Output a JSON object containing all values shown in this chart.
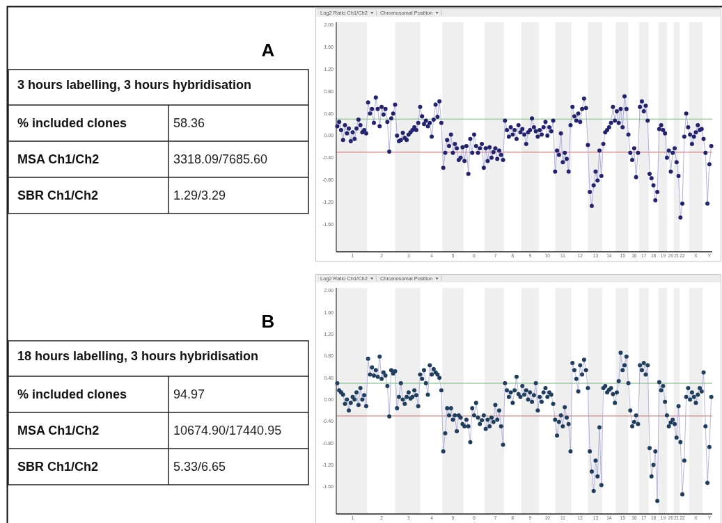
{
  "chart_data": [
    {
      "type": "other",
      "title": "A",
      "subtitle": "3 hours labelling, 3 hours hybridisation",
      "annotations": [
        "% included clones",
        "58.36",
        "MSA Ch1/Ch2",
        "3318.09/7685.60",
        "SBR Ch1/Ch2",
        "1.29/3.29"
      ]
    },
    {
      "type": "line",
      "ylabel": "Log2 Ratio Ch1/Ch2",
      "xlabel": "Chromosomal Position",
      "ylim": [
        -2.1,
        2.05
      ],
      "yticks": [
        {
          "value": 2,
          "label": "2.00"
        },
        {
          "value": 1.6,
          "label": "1.60"
        },
        {
          "value": 1.2,
          "label": "1.20"
        },
        {
          "value": 0.8,
          "label": "0.80"
        },
        {
          "value": 0.4,
          "label": "0.40"
        },
        {
          "value": 0,
          "label": "0.00"
        },
        {
          "value": -0.4,
          "label": "-0.40"
        },
        {
          "value": -0.8,
          "label": "-0.80"
        },
        {
          "value": -1.2,
          "label": "-1.20"
        },
        {
          "value": -1.6,
          "label": "-1.60"
        }
      ],
      "ref_lines": [
        {
          "axis": "y",
          "value": 0.3,
          "color": "#7dbb7d"
        },
        {
          "axis": "y",
          "value": -0.3,
          "color": "#d46a6a"
        }
      ],
      "categories": [
        null,
        null,
        null,
        null,
        null,
        null,
        null,
        null,
        "1",
        null,
        null,
        null,
        null,
        null,
        null,
        null,
        null,
        null,
        null,
        null,
        null,
        null,
        null,
        "2",
        null,
        null,
        null,
        null,
        null,
        null,
        null,
        null,
        null,
        null,
        null,
        null,
        null,
        "3",
        null,
        null,
        null,
        null,
        null,
        null,
        null,
        null,
        null,
        null,
        null,
        "4",
        null,
        null,
        null,
        null,
        null,
        null,
        null,
        null,
        null,
        null,
        "5",
        null,
        null,
        null,
        null,
        null,
        null,
        null,
        null,
        null,
        null,
        "6",
        null,
        null,
        null,
        null,
        null,
        null,
        null,
        null,
        null,
        null,
        "7",
        null,
        null,
        null,
        null,
        null,
        null,
        null,
        null,
        "8",
        null,
        null,
        null,
        null,
        null,
        null,
        null,
        null,
        "9",
        null,
        null,
        null,
        null,
        null,
        null,
        null,
        null,
        "10",
        null,
        null,
        null,
        null,
        null,
        null,
        null,
        "11",
        null,
        null,
        null,
        null,
        null,
        null,
        null,
        null,
        "12",
        null,
        null,
        null,
        null,
        null,
        null,
        null,
        "13",
        null,
        null,
        null,
        null,
        null,
        null,
        "14",
        null,
        null,
        null,
        null,
        null,
        null,
        "15",
        null,
        null,
        null,
        null,
        null,
        "16",
        null,
        null,
        null,
        null,
        "17",
        null,
        null,
        null,
        null,
        "18",
        null,
        null,
        null,
        null,
        "19",
        null,
        null,
        null,
        "20",
        null,
        null,
        "21",
        null,
        null,
        "22",
        null,
        null,
        null,
        null,
        null,
        null,
        "X",
        null,
        null,
        null,
        null,
        null,
        null,
        "Y",
        null
      ],
      "series": [
        {
          "type": "line",
          "color": "#9d9dd8",
          "values": [
            0.17,
            0.25,
            0.1,
            -0.08,
            0.19,
            0.04,
            0.13,
            -0.1,
            0.06,
            -0.06,
            0.13,
            0.29,
            0.19,
            0.06,
            0.1,
            0.04,
            0.6,
            0.4,
            0.48,
            0.23,
            0.69,
            0.48,
            0.17,
            0.52,
            0.38,
            0.48,
            0.25,
            -0.29,
            0.31,
            0.4,
            0.56,
            0.0,
            -0.1,
            -0.08,
            0.05,
            -0.04,
            -0.08,
            0.02,
            0.06,
            0.1,
            0.15,
            0.1,
            0.23,
            0.52,
            0.35,
            0.21,
            0.27,
            0.17,
            0.23,
            -0.02,
            0.29,
            0.56,
            0.34,
            0.62,
            0.23,
            -0.58,
            -0.31,
            -0.08,
            -0.19,
            0.02,
            -0.31,
            -0.15,
            -0.23,
            -0.44,
            -0.4,
            -0.21,
            -0.46,
            -0.19,
            -0.69,
            -0.06,
            -0.31,
            0.02,
            -0.19,
            -0.31,
            -0.23,
            -0.15,
            -0.58,
            -0.23,
            -0.46,
            -0.21,
            -0.4,
            -0.3,
            -0.23,
            -0.42,
            -0.27,
            -0.35,
            -0.44,
            0.27,
            0.1,
            -0.02,
            0.15,
            0.02,
            0.1,
            -0.06,
            0.19,
            0.06,
            0.12,
            0.02,
            -0.15,
            0.06,
            0.1,
            0.31,
            0.15,
            0.08,
            -0.02,
            0.1,
            0.02,
            0.15,
            0.25,
            0.0,
            0.15,
            0.08,
            0.27,
            -0.65,
            -0.27,
            -0.35,
            0.04,
            -0.48,
            -0.31,
            -0.42,
            -0.65,
            0.19,
            0.52,
            0.35,
            0.27,
            0.4,
            0.25,
            0.48,
            0.67,
            0.5,
            -0.17,
            -1.02,
            -1.27,
            -0.9,
            -0.65,
            -0.81,
            -0.27,
            -0.73,
            -0.15,
            0.06,
            0.1,
            0.15,
            0.23,
            0.52,
            0.27,
            0.44,
            0.23,
            0.48,
            0.15,
            0.71,
            0.48,
            0.02,
            -0.31,
            -0.44,
            -0.23,
            -0.75,
            -0.31,
            0.52,
            0.62,
            0.44,
            0.54,
            0.27,
            -0.69,
            -0.77,
            -0.9,
            -1.17,
            -1.02,
            0.12,
            0.19,
            0.1,
            0.04,
            -0.4,
            -0.27,
            -0.65,
            -0.31,
            -0.23,
            -0.48,
            -0.73,
            -1.48,
            -1.23,
            -0.02,
            0.4,
            0.15,
            0.02,
            -0.15,
            -0.02,
            0.06,
            0.19,
            0.1,
            0.12,
            -0.06,
            -0.31,
            -1.23,
            -0.52,
            -0.19
          ]
        },
        {
          "type": "scatter",
          "marker": "circle",
          "color": "#22226e",
          "values": [
            0.17,
            0.25,
            0.1,
            -0.08,
            0.19,
            0.04,
            0.13,
            -0.1,
            0.06,
            -0.06,
            0.13,
            0.29,
            0.19,
            0.06,
            0.1,
            0.04,
            0.6,
            0.4,
            0.48,
            0.23,
            0.69,
            0.48,
            0.17,
            0.52,
            0.38,
            0.48,
            0.25,
            -0.29,
            0.31,
            0.4,
            0.56,
            0.0,
            -0.1,
            -0.08,
            0.05,
            -0.04,
            -0.08,
            0.02,
            0.06,
            0.1,
            0.15,
            0.1,
            0.23,
            0.52,
            0.35,
            0.21,
            0.27,
            0.17,
            0.23,
            -0.02,
            0.29,
            0.56,
            0.34,
            0.62,
            0.23,
            -0.58,
            -0.31,
            -0.08,
            -0.19,
            0.02,
            -0.31,
            -0.15,
            -0.23,
            -0.44,
            -0.4,
            -0.21,
            -0.46,
            -0.19,
            -0.69,
            -0.06,
            -0.31,
            0.02,
            -0.19,
            -0.31,
            -0.23,
            -0.15,
            -0.58,
            -0.23,
            -0.46,
            -0.21,
            -0.4,
            -0.3,
            -0.23,
            -0.42,
            -0.27,
            -0.35,
            -0.44,
            0.27,
            0.1,
            -0.02,
            0.15,
            0.02,
            0.1,
            -0.06,
            0.19,
            0.06,
            0.12,
            0.02,
            -0.15,
            0.06,
            0.1,
            0.31,
            0.15,
            0.08,
            -0.02,
            0.1,
            0.02,
            0.15,
            0.25,
            0.0,
            0.15,
            0.08,
            0.27,
            -0.65,
            -0.27,
            -0.35,
            0.04,
            -0.48,
            -0.31,
            -0.42,
            -0.65,
            0.19,
            0.52,
            0.35,
            0.27,
            0.4,
            0.25,
            0.48,
            0.67,
            0.5,
            -0.17,
            -1.02,
            -1.27,
            -0.9,
            -0.65,
            -0.81,
            -0.27,
            -0.73,
            -0.15,
            0.06,
            0.1,
            0.15,
            0.23,
            0.52,
            0.27,
            0.44,
            0.23,
            0.48,
            0.15,
            0.71,
            0.48,
            0.02,
            -0.31,
            -0.44,
            -0.23,
            -0.75,
            -0.31,
            0.52,
            0.62,
            0.44,
            0.54,
            0.27,
            -0.69,
            -0.77,
            -0.9,
            -1.17,
            -1.02,
            0.12,
            0.19,
            0.1,
            0.04,
            -0.4,
            -0.27,
            -0.65,
            -0.31,
            -0.23,
            -0.48,
            -0.73,
            -1.48,
            -1.23,
            -0.02,
            0.4,
            0.15,
            0.02,
            -0.15,
            -0.02,
            0.06,
            0.19,
            0.1,
            0.12,
            -0.06,
            -0.31,
            -1.23,
            -0.52,
            -0.19
          ]
        }
      ]
    },
    {
      "type": "other",
      "title": "B",
      "subtitle": "18 hours labelling, 3 hours hybridisation",
      "annotations": [
        "% included clones",
        "94.97",
        "MSA Ch1/Ch2",
        "10674.90/17440.95",
        "SBR Ch1/Ch2",
        "5.33/6.65"
      ]
    },
    {
      "type": "line",
      "ylabel": "Log2 Ratio Ch1/Ch2",
      "xlabel": "Chromosomal Position",
      "ylim": [
        -2.1,
        2.05
      ],
      "yticks": [
        {
          "value": 2,
          "label": "2.00"
        },
        {
          "value": 1.6,
          "label": "1.60"
        },
        {
          "value": 1.2,
          "label": "1.20"
        },
        {
          "value": 0.8,
          "label": "0.80"
        },
        {
          "value": 0.4,
          "label": "0.40"
        },
        {
          "value": 0,
          "label": "0.00"
        },
        {
          "value": -0.4,
          "label": "-0.40"
        },
        {
          "value": -0.8,
          "label": "-0.80"
        },
        {
          "value": -1.2,
          "label": "-1.20"
        },
        {
          "value": -1.6,
          "label": "-1.60"
        }
      ],
      "ref_lines": [
        {
          "axis": "y",
          "value": 0.3,
          "color": "#7dbb7d"
        },
        {
          "axis": "y",
          "value": -0.3,
          "color": "#d46a6a"
        }
      ],
      "categories": [
        null,
        null,
        null,
        null,
        null,
        null,
        null,
        null,
        "1",
        null,
        null,
        null,
        null,
        null,
        null,
        null,
        null,
        null,
        null,
        null,
        null,
        null,
        null,
        "2",
        null,
        null,
        null,
        null,
        null,
        null,
        null,
        null,
        null,
        null,
        null,
        null,
        null,
        "3",
        null,
        null,
        null,
        null,
        null,
        null,
        null,
        null,
        null,
        null,
        null,
        "4",
        null,
        null,
        null,
        null,
        null,
        null,
        null,
        null,
        null,
        null,
        "5",
        null,
        null,
        null,
        null,
        null,
        null,
        null,
        null,
        null,
        null,
        "6",
        null,
        null,
        null,
        null,
        null,
        null,
        null,
        null,
        null,
        null,
        "7",
        null,
        null,
        null,
        null,
        null,
        null,
        null,
        null,
        "8",
        null,
        null,
        null,
        null,
        null,
        null,
        null,
        null,
        "9",
        null,
        null,
        null,
        null,
        null,
        null,
        null,
        null,
        "10",
        null,
        null,
        null,
        null,
        null,
        null,
        null,
        "11",
        null,
        null,
        null,
        null,
        null,
        null,
        null,
        null,
        "12",
        null,
        null,
        null,
        null,
        null,
        null,
        null,
        "13",
        null,
        null,
        null,
        null,
        null,
        null,
        "14",
        null,
        null,
        null,
        null,
        null,
        null,
        "15",
        null,
        null,
        null,
        null,
        null,
        "16",
        null,
        null,
        null,
        null,
        "17",
        null,
        null,
        null,
        null,
        "18",
        null,
        null,
        null,
        null,
        "19",
        null,
        null,
        null,
        "20",
        null,
        null,
        "21",
        null,
        null,
        "22",
        null,
        null,
        null,
        null,
        null,
        null,
        "X",
        null,
        null,
        null,
        null,
        null,
        null,
        "Y",
        null
      ],
      "series": [
        {
          "type": "line",
          "color": "#a3a3d6",
          "values": [
            0.3,
            0.17,
            0.13,
            0.09,
            -0.08,
            0.0,
            -0.2,
            -0.06,
            0.05,
            0.0,
            0.13,
            -0.1,
            0.21,
            0.0,
            0.08,
            -0.12,
            0.75,
            0.46,
            0.59,
            0.44,
            0.54,
            0.42,
            0.79,
            0.38,
            0.5,
            0.44,
            0.25,
            -0.31,
            0.54,
            0.48,
            0.52,
            -0.16,
            0.05,
            0.3,
            0.0,
            -0.08,
            0.05,
            0.13,
            0.02,
            0.05,
            0.17,
            0.08,
            -0.12,
            0.46,
            0.38,
            0.54,
            0.3,
            0.09,
            0.63,
            0.46,
            0.56,
            0.5,
            0.46,
            0.4,
            0.17,
            -0.95,
            -0.62,
            -0.16,
            -0.29,
            -0.16,
            -0.37,
            -0.29,
            -0.58,
            -0.29,
            -0.33,
            -0.45,
            -0.49,
            -0.37,
            -0.49,
            -0.78,
            -0.16,
            -0.29,
            -0.06,
            -0.33,
            -0.45,
            -0.38,
            -0.29,
            -0.54,
            -0.37,
            -0.49,
            -0.33,
            -0.41,
            -0.1,
            -0.37,
            -0.2,
            -0.49,
            -0.83,
            0.3,
            0.17,
            0.05,
            0.13,
            -0.06,
            0.17,
            0.42,
            0.1,
            0.05,
            0.25,
            0.09,
            0.17,
            0.0,
            0.13,
            -0.04,
            0.08,
            0.3,
            -0.2,
            0.05,
            -0.04,
            0.13,
            0.21,
            0.05,
            0.13,
            0.09,
            -0.08,
            -0.37,
            -0.66,
            -0.41,
            -0.29,
            -0.49,
            -0.14,
            -0.33,
            -0.45,
            -0.95,
            0.67,
            0.54,
            0.38,
            0.15,
            0.63,
            0.46,
            0.73,
            0.54,
            0.21,
            -0.95,
            -1.32,
            -1.68,
            -1.12,
            -1.41,
            -0.51,
            -1.57,
            0.21,
            0.25,
            0.13,
            0.18,
            0.21,
            0.1,
            -0.06,
            0.13,
            0.34,
            0.86,
            0.54,
            0.63,
            0.79,
            0.3,
            -0.2,
            -0.49,
            -0.41,
            -0.29,
            -0.45,
            0.63,
            0.54,
            0.67,
            0.46,
            0.63,
            -0.89,
            -1.41,
            -1.2,
            -0.95,
            -1.86,
            0.32,
            0.17,
            0.25,
            -0.04,
            -0.29,
            -0.49,
            -0.42,
            -0.37,
            -0.45,
            -0.7,
            -0.12,
            -0.78,
            -1.74,
            -1.12,
            0.05,
            0.21,
            0.0,
            0.13,
            0.05,
            -0.06,
            0.09,
            0.21,
            0.15,
            0.5,
            -0.49,
            -1.53,
            -0.87,
            0.05
          ]
        },
        {
          "type": "scatter",
          "marker": "circle",
          "color": "#1f3d5c",
          "values": [
            0.3,
            0.17,
            0.13,
            0.09,
            -0.08,
            0.0,
            -0.2,
            -0.06,
            0.05,
            0.0,
            0.13,
            -0.1,
            0.21,
            0.0,
            0.08,
            -0.12,
            0.75,
            0.46,
            0.59,
            0.44,
            0.54,
            0.42,
            0.79,
            0.38,
            0.5,
            0.44,
            0.25,
            -0.31,
            0.54,
            0.48,
            0.52,
            -0.16,
            0.05,
            0.3,
            0.0,
            -0.08,
            0.05,
            0.13,
            0.02,
            0.05,
            0.17,
            0.08,
            -0.12,
            0.46,
            0.38,
            0.54,
            0.3,
            0.09,
            0.63,
            0.46,
            0.56,
            0.5,
            0.46,
            0.4,
            0.17,
            -0.95,
            -0.62,
            -0.16,
            -0.29,
            -0.16,
            -0.37,
            -0.29,
            -0.58,
            -0.29,
            -0.33,
            -0.45,
            -0.49,
            -0.37,
            -0.49,
            -0.78,
            -0.16,
            -0.29,
            -0.06,
            -0.33,
            -0.45,
            -0.38,
            -0.29,
            -0.54,
            -0.37,
            -0.49,
            -0.33,
            -0.41,
            -0.1,
            -0.37,
            -0.2,
            -0.49,
            -0.83,
            0.3,
            0.17,
            0.05,
            0.13,
            -0.06,
            0.17,
            0.42,
            0.1,
            0.05,
            0.25,
            0.09,
            0.17,
            0.0,
            0.13,
            -0.04,
            0.08,
            0.3,
            -0.2,
            0.05,
            -0.04,
            0.13,
            0.21,
            0.05,
            0.13,
            0.09,
            -0.08,
            -0.37,
            -0.66,
            -0.41,
            -0.29,
            -0.49,
            -0.14,
            -0.33,
            -0.45,
            -0.95,
            0.67,
            0.54,
            0.38,
            0.15,
            0.63,
            0.46,
            0.73,
            0.54,
            0.21,
            -0.95,
            -1.32,
            -1.68,
            -1.12,
            -1.41,
            -0.51,
            -1.57,
            0.21,
            0.25,
            0.13,
            0.18,
            0.21,
            0.1,
            -0.06,
            0.13,
            0.34,
            0.86,
            0.54,
            0.63,
            0.79,
            0.3,
            -0.2,
            -0.49,
            -0.41,
            -0.29,
            -0.45,
            0.63,
            0.54,
            0.67,
            0.46,
            0.63,
            -0.89,
            -1.41,
            -1.2,
            -0.95,
            -1.86,
            0.32,
            0.17,
            0.25,
            -0.04,
            -0.29,
            -0.49,
            -0.42,
            -0.37,
            -0.45,
            -0.7,
            -0.12,
            -0.78,
            -1.74,
            -1.12,
            0.05,
            0.21,
            0.0,
            0.13,
            0.05,
            -0.06,
            0.09,
            0.21,
            0.15,
            0.5,
            -0.49,
            -1.53,
            -0.87,
            0.05
          ]
        }
      ]
    }
  ]
}
